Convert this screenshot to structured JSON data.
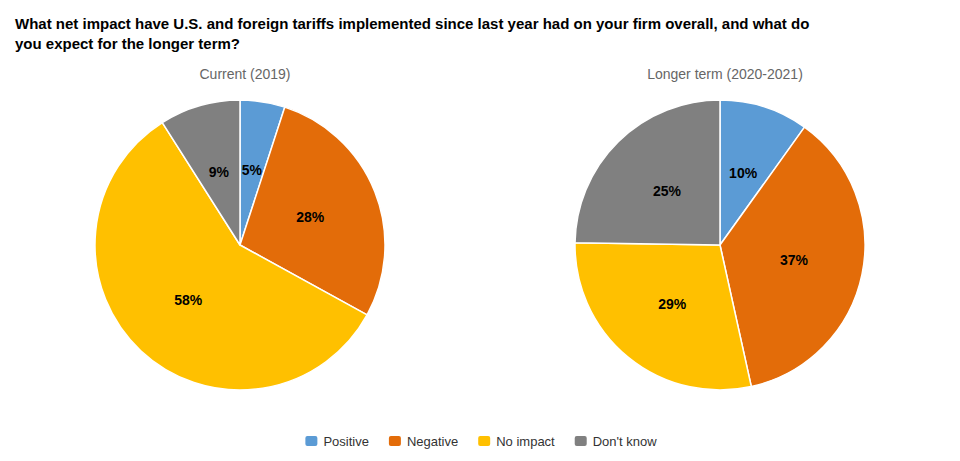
{
  "title": "What net impact have U.S. and foreign tariffs implemented since last year had on your firm overall, and what do\nyou expect for the longer term?",
  "chart_data": [
    {
      "type": "pie",
      "title": "Current (2019)",
      "categories": [
        "Positive",
        "Negative",
        "No impact",
        "Don't know"
      ],
      "values": [
        5,
        28,
        58,
        9
      ],
      "value_labels": [
        "5%",
        "28%",
        "58%",
        "9%"
      ],
      "colors": [
        "#5B9BD5",
        "#E36C09",
        "#FFC000",
        "#808080"
      ],
      "data_labels": true,
      "legend": "bottom"
    },
    {
      "type": "pie",
      "title": "Longer term (2020-2021)",
      "categories": [
        "Positive",
        "Negative",
        "No impact",
        "Don't know"
      ],
      "values": [
        10,
        37,
        29,
        25
      ],
      "value_labels": [
        "10%",
        "37%",
        "29%",
        "25%"
      ],
      "colors": [
        "#5B9BD5",
        "#E36C09",
        "#FFC000",
        "#808080"
      ],
      "data_labels": true,
      "legend": "bottom"
    }
  ]
}
